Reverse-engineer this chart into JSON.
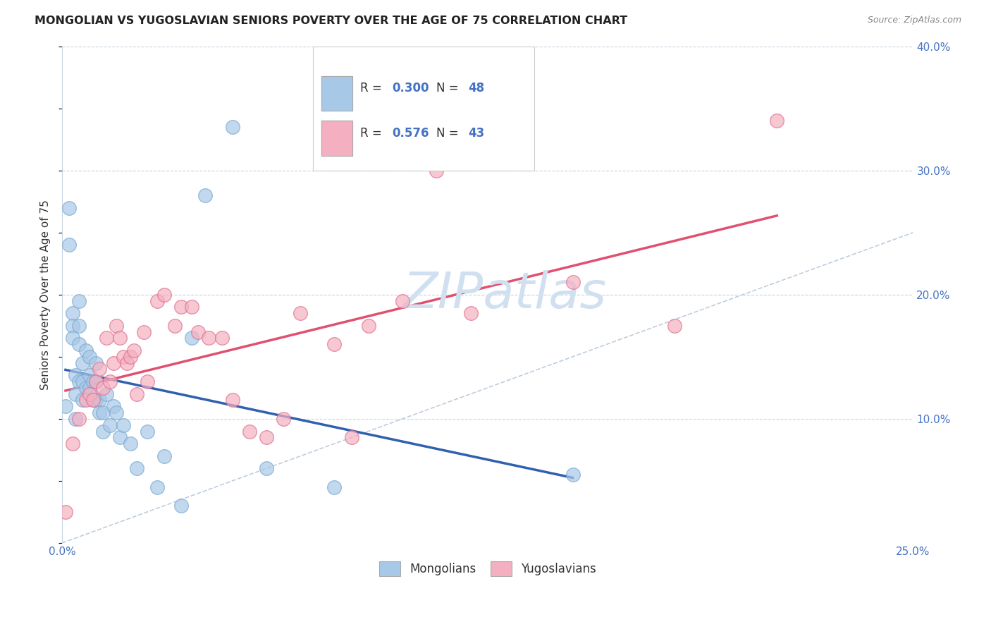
{
  "title": "MONGOLIAN VS YUGOSLAVIAN SENIORS POVERTY OVER THE AGE OF 75 CORRELATION CHART",
  "source": "Source: ZipAtlas.com",
  "ylabel": "Seniors Poverty Over the Age of 75",
  "xlabel_mongolians": "Mongolians",
  "xlabel_yugoslavians": "Yugoslavians",
  "xlim": [
    0.0,
    0.25
  ],
  "ylim": [
    0.0,
    0.4
  ],
  "y_ticks_right": [
    0.1,
    0.2,
    0.3,
    0.4
  ],
  "y_tick_labels_right": [
    "10.0%",
    "20.0%",
    "30.0%",
    "40.0%"
  ],
  "mongolian_R": 0.3,
  "mongolian_N": 48,
  "yugoslavian_R": 0.576,
  "yugoslavian_N": 43,
  "mongolian_color": "#a8c8e8",
  "mongolian_edge": "#7aaad0",
  "yugoslavian_color": "#f4b0c0",
  "yugoslavian_edge": "#e07090",
  "blue_text_color": "#4472C4",
  "trend_mongolian_color": "#3060b0",
  "trend_yugoslavian_color": "#e05070",
  "diagonal_color": "#b8c8d8",
  "background_color": "#ffffff",
  "grid_color": "#c8d4e0",
  "watermark_color": "#d0e0f0",
  "watermark_fontsize": 52,
  "mongolian_x": [
    0.001,
    0.002,
    0.002,
    0.003,
    0.003,
    0.003,
    0.004,
    0.004,
    0.004,
    0.005,
    0.005,
    0.005,
    0.005,
    0.006,
    0.006,
    0.006,
    0.007,
    0.007,
    0.008,
    0.008,
    0.008,
    0.009,
    0.009,
    0.01,
    0.01,
    0.01,
    0.011,
    0.011,
    0.012,
    0.012,
    0.013,
    0.014,
    0.015,
    0.016,
    0.017,
    0.018,
    0.02,
    0.022,
    0.025,
    0.028,
    0.03,
    0.035,
    0.038,
    0.042,
    0.05,
    0.06,
    0.08,
    0.15
  ],
  "mongolian_y": [
    0.11,
    0.27,
    0.24,
    0.185,
    0.175,
    0.165,
    0.135,
    0.12,
    0.1,
    0.195,
    0.175,
    0.16,
    0.13,
    0.145,
    0.13,
    0.115,
    0.155,
    0.125,
    0.15,
    0.135,
    0.125,
    0.13,
    0.115,
    0.145,
    0.13,
    0.115,
    0.115,
    0.105,
    0.105,
    0.09,
    0.12,
    0.095,
    0.11,
    0.105,
    0.085,
    0.095,
    0.08,
    0.06,
    0.09,
    0.045,
    0.07,
    0.03,
    0.165,
    0.28,
    0.335,
    0.06,
    0.045,
    0.055
  ],
  "yugoslavian_x": [
    0.001,
    0.003,
    0.005,
    0.007,
    0.008,
    0.009,
    0.01,
    0.011,
    0.012,
    0.013,
    0.014,
    0.015,
    0.016,
    0.017,
    0.018,
    0.019,
    0.02,
    0.021,
    0.022,
    0.024,
    0.025,
    0.028,
    0.03,
    0.033,
    0.035,
    0.038,
    0.04,
    0.043,
    0.047,
    0.05,
    0.055,
    0.06,
    0.065,
    0.07,
    0.08,
    0.085,
    0.09,
    0.1,
    0.11,
    0.12,
    0.15,
    0.18,
    0.21
  ],
  "yugoslavian_y": [
    0.025,
    0.08,
    0.1,
    0.115,
    0.12,
    0.115,
    0.13,
    0.14,
    0.125,
    0.165,
    0.13,
    0.145,
    0.175,
    0.165,
    0.15,
    0.145,
    0.15,
    0.155,
    0.12,
    0.17,
    0.13,
    0.195,
    0.2,
    0.175,
    0.19,
    0.19,
    0.17,
    0.165,
    0.165,
    0.115,
    0.09,
    0.085,
    0.1,
    0.185,
    0.16,
    0.085,
    0.175,
    0.195,
    0.3,
    0.185,
    0.21,
    0.175,
    0.34
  ]
}
